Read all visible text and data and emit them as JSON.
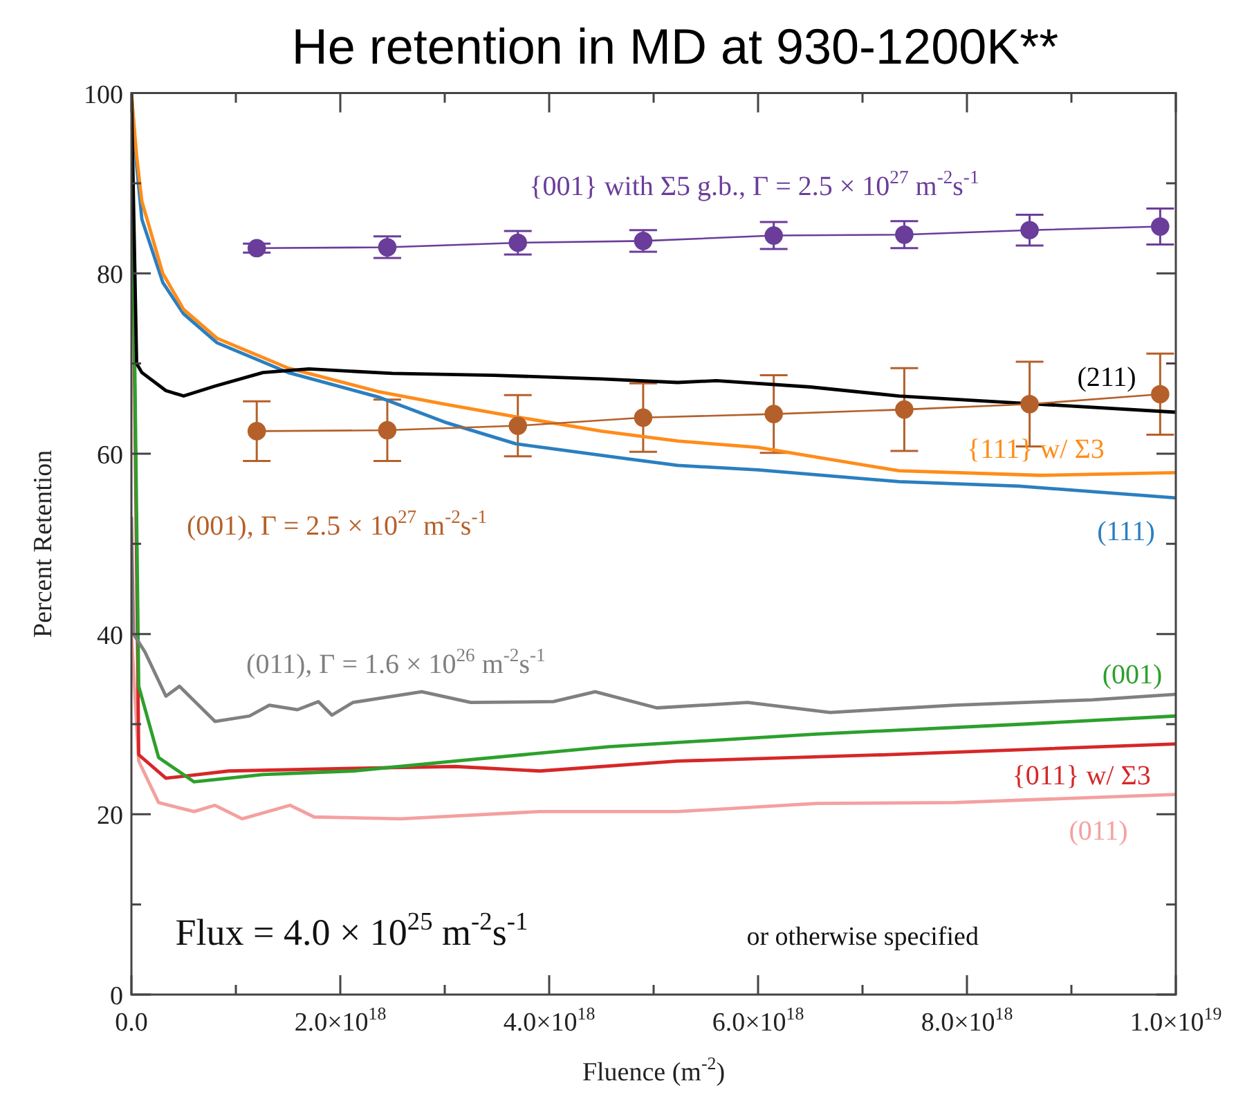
{
  "chart_data": {
    "type": "line",
    "title": "He retention in MD at 930-1200K**",
    "xlabel": "Fluence (m$^{-2}$)",
    "ylabel": "Percent Retention",
    "xlim": [
      0,
      1e+19
    ],
    "ylim": [
      0,
      100
    ],
    "xticks": [
      {
        "value": 0,
        "label": "0.0"
      },
      {
        "value": 1e+18,
        "label": null
      },
      {
        "value": 2e+18,
        "label": "2.0×10$^{18}$"
      },
      {
        "value": 3e+18,
        "label": null
      },
      {
        "value": 4e+18,
        "label": "4.0×10$^{18}$"
      },
      {
        "value": 5e+18,
        "label": null
      },
      {
        "value": 6e+18,
        "label": "6.0×10$^{18}$"
      },
      {
        "value": 7e+18,
        "label": null
      },
      {
        "value": 8e+18,
        "label": "8.0×10$^{18}$"
      },
      {
        "value": 9e+18,
        "label": null
      },
      {
        "value": 1e+19,
        "label": "1.0×10$^{19}$"
      }
    ],
    "yticks": [
      0,
      {
        "value": 10,
        "label": null
      },
      20,
      {
        "value": 30,
        "label": null
      },
      40,
      {
        "value": 50,
        "label": null
      },
      60,
      {
        "value": 70,
        "label": null
      },
      80,
      {
        "value": 90,
        "label": null
      },
      100
    ],
    "grid": false,
    "legend": false,
    "annotations": [
      "Flux = 4.0 × 10$^{25}$ m$^{-2}$s$^{-1}$",
      "or otherwise specified"
    ],
    "series": [
      {
        "name": "{001} with Σ5 g.b., Γ = 2.5 × 10$^{27}$ m$^{-2}$s$^{-1}$",
        "color": "#6a3d9a",
        "marker": "circle",
        "x": [
          1.2e+18,
          2.45e+18,
          3.7e+18,
          4.9e+18,
          6.15e+18,
          7.4e+18,
          8.6e+18,
          9.85e+18
        ],
        "values": [
          82.8,
          82.9,
          83.4,
          83.6,
          84.2,
          84.3,
          84.8,
          85.2
        ],
        "errors": [
          0.5,
          1.2,
          1.3,
          1.2,
          1.5,
          1.5,
          1.7,
          2
        ]
      },
      {
        "name": "(001), Γ = 2.5 × 10$^{27}$ m$^{-2}$s$^{-1}$",
        "color": "#b5602a",
        "marker": "circle",
        "x": [
          1.2e+18,
          2.45e+18,
          3.7e+18,
          4.9e+18,
          6.15e+18,
          7.4e+18,
          8.6e+18,
          9.85e+18
        ],
        "values": [
          62.5,
          62.6,
          63.1,
          64,
          64.4,
          64.9,
          65.5,
          66.6
        ],
        "errors": [
          3.3,
          3.4,
          3.4,
          3.8,
          4.3,
          4.6,
          4.7,
          4.5
        ]
      },
      {
        "name": "(211)",
        "color": "#000000",
        "marker": "none",
        "x": [
          0,
          2e+16,
          5e+16,
          1e+17,
          3.3e+17,
          5e+17,
          8e+17,
          1.26e+18,
          1.7e+18,
          2.5e+18,
          3.47e+18,
          4.5e+18,
          5.23e+18,
          5.6e+18,
          6.5e+18,
          7.35e+18,
          8.68e+18,
          1e+19
        ],
        "values": [
          100,
          88,
          70,
          69,
          67,
          66.4,
          67.5,
          69,
          69.4,
          68.9,
          68.7,
          68.3,
          67.9,
          68.1,
          67.4,
          66.4,
          65.5,
          64.6
        ]
      },
      {
        "name": "{111} w/ Σ3",
        "color": "#ff8c1a",
        "marker": "none",
        "x": [
          0,
          5e+16,
          1e+17,
          3e+17,
          5e+17,
          8.2e+17,
          1.5e+18,
          2.36e+18,
          3e+18,
          3.68e+18,
          4.5e+18,
          5.23e+18,
          6e+18,
          7.35e+18,
          8.7e+18,
          1e+19
        ],
        "values": [
          100,
          93,
          88,
          80,
          76,
          72.8,
          69.5,
          66.9,
          65.5,
          64.1,
          62.5,
          61.4,
          60.7,
          58.1,
          57.6,
          57.9
        ]
      },
      {
        "name": "(111)",
        "color": "#2a7fc0",
        "marker": "none",
        "x": [
          0,
          5e+16,
          1e+17,
          3e+17,
          5e+17,
          8.2e+17,
          1.5e+18,
          2.36e+18,
          3e+18,
          3.68e+18,
          4.7e+18,
          5.23e+18,
          6e+18,
          7.35e+18,
          8.5e+18,
          1e+19
        ],
        "values": [
          100,
          92,
          86,
          79,
          75.5,
          72.3,
          69,
          66.3,
          63.5,
          61.1,
          59.5,
          58.7,
          58.2,
          56.9,
          56.4,
          55.1
        ]
      },
      {
        "name": "(011), Γ = 1.6 × 10$^{26}$ m$^{-2}$s$^{-1}$",
        "color": "#808080",
        "marker": "none",
        "x": [
          0,
          2e+16,
          1.3e+17,
          3.3e+17,
          4.6e+17,
          8e+17,
          1.13e+18,
          1.32e+18,
          1.59e+18,
          1.79e+18,
          1.92e+18,
          2.12e+18,
          2.78e+18,
          3.25e+18,
          4.04e+18,
          4.44e+18,
          5.03e+18,
          5.9e+18,
          6.69e+18,
          7.88e+18,
          9.2e+18,
          1e+19
        ],
        "values": [
          53,
          40,
          38,
          33.1,
          34.2,
          30.3,
          30.9,
          32.1,
          31.6,
          32.5,
          31,
          32.4,
          33.6,
          32.4,
          32.5,
          33.6,
          31.8,
          32.4,
          31.3,
          32.1,
          32.7,
          33.3
        ]
      },
      {
        "name": "(001)",
        "color": "#2ca02c",
        "marker": "none",
        "x": [
          0,
          7e+16,
          2.6e+17,
          6e+17,
          1.26e+18,
          2.12e+18,
          3.1e+18,
          4.57e+18,
          6.56e+18,
          8.54e+18,
          1e+19
        ],
        "values": [
          100,
          34.2,
          26.3,
          23.6,
          24.4,
          24.8,
          25.9,
          27.5,
          28.9,
          30,
          30.9
        ]
      },
      {
        "name": "{011} w/ Σ3",
        "color": "#d62728",
        "marker": "none",
        "x": [
          0,
          7e+16,
          3.3e+17,
          9.3e+17,
          2.12e+18,
          3.1e+18,
          3.91e+18,
          5.23e+18,
          7.2e+18,
          1e+19
        ],
        "values": [
          100,
          26.6,
          24,
          24.8,
          25.1,
          25.3,
          24.8,
          25.9,
          26.6,
          27.8
        ]
      },
      {
        "name": "(011)",
        "color": "#f4a0a0",
        "marker": "none",
        "x": [
          0,
          7e+16,
          2.6e+17,
          6e+17,
          8e+17,
          1.06e+18,
          1.52e+18,
          1.75e+18,
          2.58e+18,
          3.91e+18,
          5.23e+18,
          6.56e+18,
          7.88e+18,
          1e+19
        ],
        "values": [
          40,
          25.9,
          21.3,
          20.3,
          21,
          19.5,
          21,
          19.7,
          19.5,
          20.3,
          20.3,
          21.2,
          21.3,
          22.2
        ]
      }
    ]
  }
}
